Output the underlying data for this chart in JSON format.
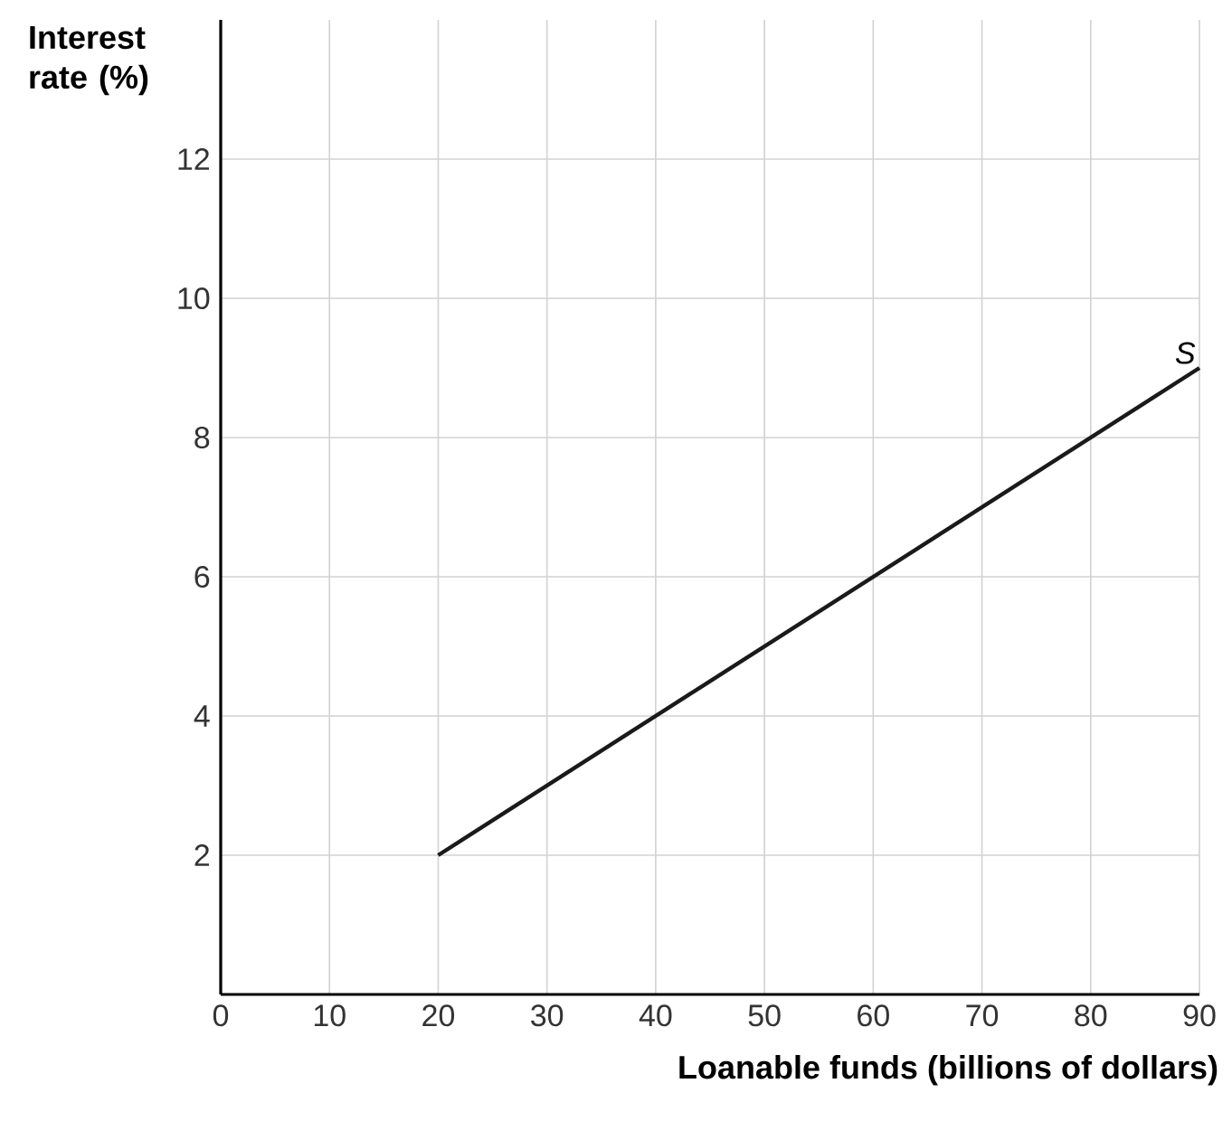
{
  "chart_data": {
    "type": "line",
    "xlabel": "Loanable funds (billions of dollars)",
    "ylabel": "Interest rate (%)",
    "x": [
      20,
      90
    ],
    "series": [
      {
        "name": "S",
        "color": "#1a1a1a",
        "values": [
          2,
          9
        ]
      }
    ],
    "xlim": [
      0,
      90
    ],
    "ylim": [
      0,
      14
    ],
    "xticks": [
      0,
      10,
      20,
      30,
      40,
      50,
      60,
      70,
      80,
      90
    ],
    "yticks": [
      {
        "value": 0,
        "label": null
      },
      2,
      4,
      6,
      8,
      10,
      12
    ],
    "grid": true,
    "legend": false,
    "marker": "none",
    "line_style": "solid"
  }
}
